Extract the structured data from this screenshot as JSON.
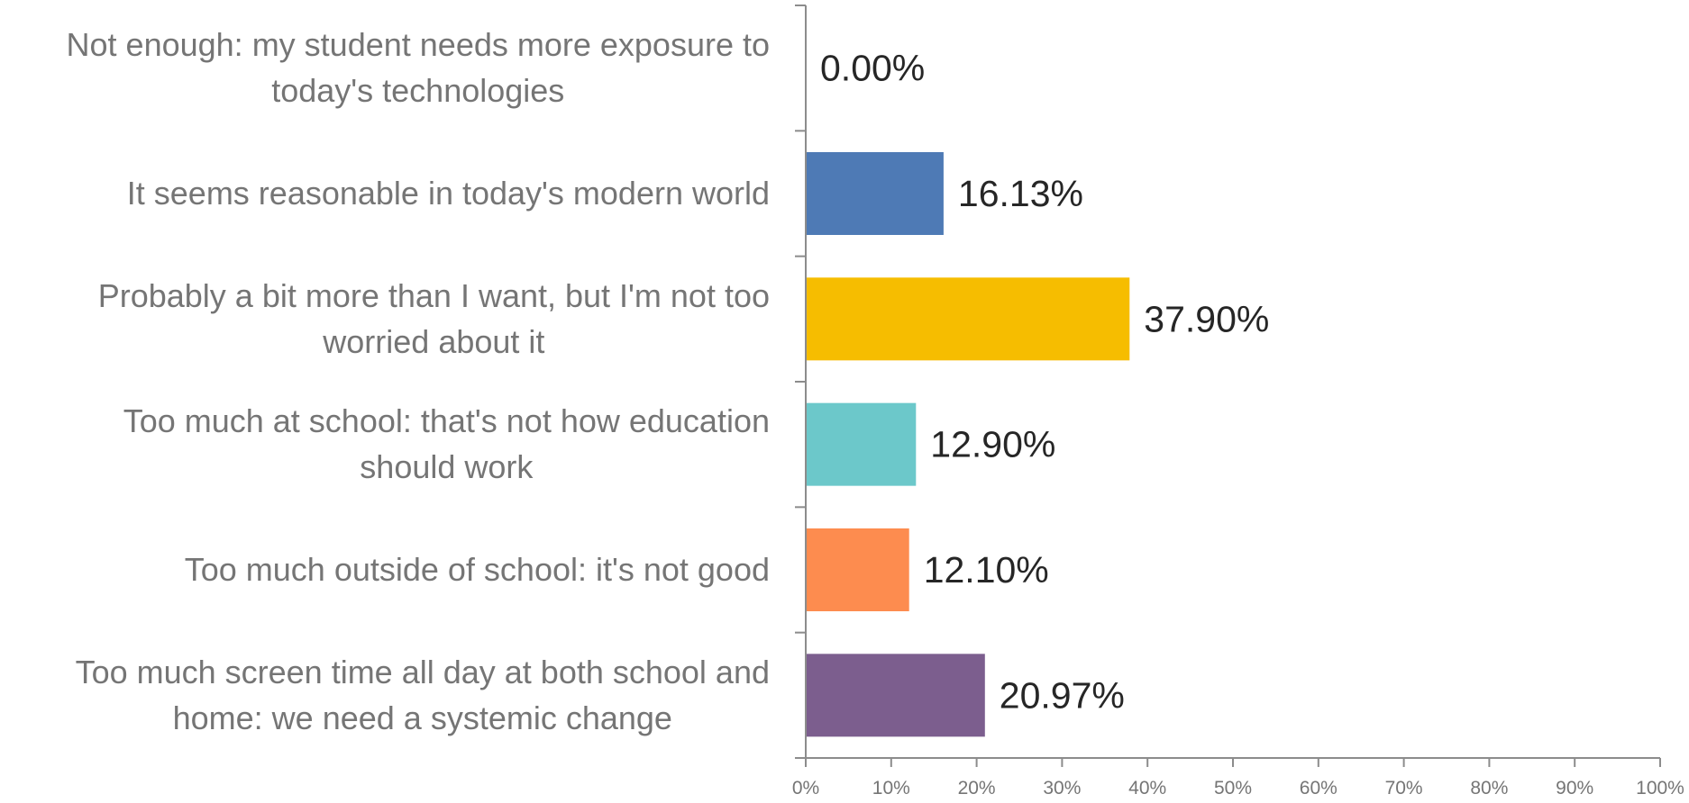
{
  "chart_data": {
    "type": "bar",
    "orientation": "horizontal",
    "categories": [
      [
        "Not enough: my student needs more exposure to",
        "today's technologies"
      ],
      [
        "It seems reasonable in today's modern world"
      ],
      [
        "Probably a bit more than I want, but I'm not too",
        "worried about it"
      ],
      [
        "Too much at school: that's not how education",
        "should work"
      ],
      [
        "Too much outside of school: it's not good"
      ],
      [
        "Too much screen time all day at both school and",
        "home: we need a systemic change"
      ]
    ],
    "values": [
      0.0,
      16.13,
      37.9,
      12.9,
      12.1,
      20.97
    ],
    "data_labels": [
      "0.00%",
      "16.13%",
      "37.90%",
      "12.90%",
      "12.10%",
      "20.97%"
    ],
    "colors": [
      "#4e7ab5",
      "#4e7ab5",
      "#f6bd00",
      "#6cc8ca",
      "#fd8c4f",
      "#7c5e8e"
    ],
    "xlim": [
      0,
      100
    ],
    "x_ticks": [
      "0%",
      "10%",
      "20%",
      "30%",
      "40%",
      "50%",
      "60%",
      "70%",
      "80%",
      "90%",
      "100%"
    ],
    "grid": false,
    "legend": false,
    "title": "",
    "xlabel": "",
    "ylabel": ""
  }
}
